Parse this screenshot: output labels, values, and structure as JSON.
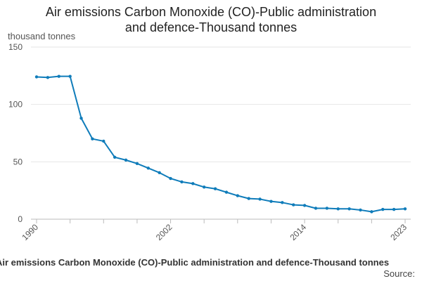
{
  "chart_data": {
    "type": "line",
    "title_lines": [
      "Air emissions Carbon Monoxide (CO)-Public administration",
      "and defence-Thousand tonnes"
    ],
    "ylabel": "thousand tonnes",
    "xlabel": "",
    "ylim": [
      0,
      150
    ],
    "yticks": [
      0,
      50,
      100,
      150
    ],
    "xlim": [
      1990,
      2023
    ],
    "xtick_labels": [
      "1990",
      "2002",
      "2014",
      "2023"
    ],
    "grid": true,
    "series": [
      {
        "color": "#0f7cba",
        "x": [
          1990,
          1991,
          1992,
          1993,
          1994,
          1995,
          1996,
          1997,
          1998,
          1999,
          2000,
          2001,
          2002,
          2003,
          2004,
          2005,
          2006,
          2007,
          2008,
          2009,
          2010,
          2011,
          2012,
          2013,
          2014,
          2015,
          2016,
          2017,
          2018,
          2019,
          2020,
          2021,
          2022,
          2023
        ],
        "values": [
          124,
          123.5,
          124.5,
          124.5,
          88,
          70,
          68,
          54,
          51.5,
          48.5,
          44.5,
          40.5,
          35.5,
          32.5,
          31,
          28,
          26.5,
          23.5,
          20.5,
          18,
          17.5,
          15.5,
          14.5,
          12.5,
          12,
          9.5,
          9.5,
          9,
          9,
          8,
          6.5,
          8.5,
          8.5,
          9
        ]
      }
    ]
  },
  "footer": {
    "caption": "Air emissions Carbon Monoxide (CO)-Public administration and defence-Thousand tonnes",
    "source_label": "Source:"
  }
}
